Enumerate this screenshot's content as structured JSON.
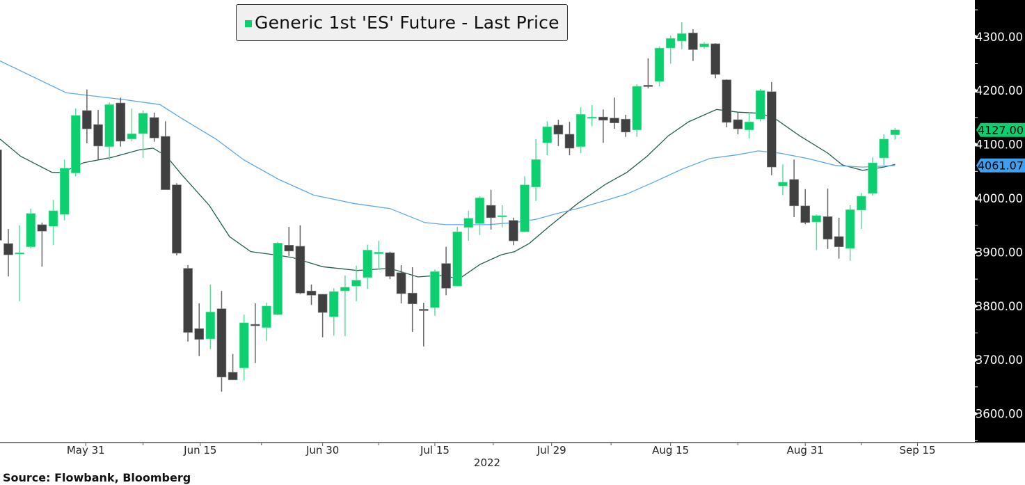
{
  "chart_data": {
    "type": "candlestick",
    "title": "",
    "legend": {
      "label": "Generic 1st 'ES' Future - Last Price",
      "placement": "top-center"
    },
    "source": "Source: Flowbank, Bloomberg",
    "ylim": [
      3550,
      4350
    ],
    "y_ticks": [
      3600,
      3700,
      3800,
      3900,
      4000,
      4100,
      4200,
      4300
    ],
    "y_tick_labels": [
      "3600.00",
      "3700.00",
      "3800.00",
      "3900.00",
      "4000.00",
      "4100.00",
      "4200.00",
      "4300.00"
    ],
    "x_tick_labels": [
      {
        "label": "May 31",
        "index": 7.9
      },
      {
        "label": "Jun 15",
        "index": 18.1
      },
      {
        "label": "Jun 30",
        "index": 29.0
      },
      {
        "label": "Jul 15",
        "index": 39.0
      },
      {
        "label": "Jul 29",
        "index": 49.4
      },
      {
        "label": "Aug 15",
        "index": 60.0
      },
      {
        "label": "Aug 31",
        "index": 72.0
      },
      {
        "label": "Sep 15",
        "index": 82.0
      }
    ],
    "x_year_label": "2022",
    "last_price_label": "4127.00",
    "ma_long_label": "4061.07",
    "colors": {
      "up": "#0ccf6f",
      "down": "#404040",
      "ma_short": "#1f5e50",
      "ma_long": "#5aa8e8",
      "axis_bg": "#000000",
      "badge_up": "#0ccf6f",
      "badge_ma": "#3fa0f0"
    },
    "candles_ohlc": [
      [
        4090,
        4100,
        3915,
        3922
      ],
      [
        3916,
        3943,
        3855,
        3895
      ],
      [
        3899,
        3950,
        3809,
        3899
      ],
      [
        3910,
        3981,
        3907,
        3972
      ],
      [
        3951,
        3955,
        3873,
        3939
      ],
      [
        3948,
        3997,
        3913,
        3977
      ],
      [
        3970,
        4072,
        3959,
        4056
      ],
      [
        4047,
        4167,
        4041,
        4154
      ],
      [
        4163,
        4202,
        4102,
        4129
      ],
      [
        4137,
        4164,
        4071,
        4097
      ],
      [
        4096,
        4178,
        4071,
        4174
      ],
      [
        4177,
        4187,
        4096,
        4106
      ],
      [
        4110,
        4167,
        4106,
        4120
      ],
      [
        4120,
        4163,
        4075,
        4158
      ],
      [
        4150,
        4159,
        4105,
        4112
      ],
      [
        4115,
        4143,
        4016,
        4016
      ],
      [
        4025,
        4028,
        3894,
        3898
      ],
      [
        3870,
        3876,
        3734,
        3751
      ],
      [
        3758,
        3805,
        3707,
        3738
      ],
      [
        3739,
        3840,
        3720,
        3789
      ],
      [
        3795,
        3828,
        3641,
        3668
      ],
      [
        3677,
        3711,
        3663,
        3663
      ],
      [
        3685,
        3784,
        3662,
        3769
      ],
      [
        3766,
        3805,
        3694,
        3764
      ],
      [
        3760,
        3806,
        3735,
        3800
      ],
      [
        3784,
        3919,
        3783,
        3917
      ],
      [
        3913,
        3947,
        3893,
        3902
      ],
      [
        3911,
        3950,
        3822,
        3824
      ],
      [
        3828,
        3840,
        3802,
        3820
      ],
      [
        3822,
        3822,
        3742,
        3788
      ],
      [
        3780,
        3833,
        3745,
        3827
      ],
      [
        3828,
        3857,
        3744,
        3835
      ],
      [
        3837,
        3875,
        3809,
        3848
      ],
      [
        3853,
        3914,
        3832,
        3904
      ],
      [
        3897,
        3921,
        3868,
        3900
      ],
      [
        3899,
        3901,
        3850,
        3855
      ],
      [
        3862,
        3876,
        3805,
        3823
      ],
      [
        3824,
        3872,
        3752,
        3804
      ],
      [
        3794,
        3806,
        3725,
        3793
      ],
      [
        3797,
        3868,
        3782,
        3864
      ],
      [
        3879,
        3910,
        3820,
        3833
      ],
      [
        3837,
        3947,
        3836,
        3938
      ],
      [
        3946,
        3977,
        3921,
        3963
      ],
      [
        3953,
        4004,
        3932,
        4001
      ],
      [
        3987,
        4016,
        3942,
        3964
      ],
      [
        3966,
        3987,
        3946,
        3968
      ],
      [
        3959,
        3964,
        3913,
        3921
      ],
      [
        3938,
        4041,
        3937,
        4025
      ],
      [
        4021,
        4110,
        3995,
        4072
      ],
      [
        4103,
        4143,
        4080,
        4133
      ],
      [
        4136,
        4146,
        4097,
        4119
      ],
      [
        4119,
        4142,
        4080,
        4093
      ],
      [
        4096,
        4169,
        4084,
        4156
      ],
      [
        4150,
        4173,
        4134,
        4151
      ],
      [
        4151,
        4165,
        4103,
        4145
      ],
      [
        4149,
        4187,
        4129,
        4140
      ],
      [
        4147,
        4155,
        4114,
        4123
      ],
      [
        4127,
        4212,
        4114,
        4208
      ],
      [
        4210,
        4260,
        4204,
        4209
      ],
      [
        4217,
        4282,
        4208,
        4279
      ],
      [
        4279,
        4302,
        4250,
        4297
      ],
      [
        4292,
        4327,
        4277,
        4306
      ],
      [
        4307,
        4314,
        4255,
        4276
      ],
      [
        4281,
        4290,
        4278,
        4287
      ],
      [
        4287,
        4288,
        4223,
        4230
      ],
      [
        4220,
        4221,
        4132,
        4141
      ],
      [
        4146,
        4160,
        4119,
        4129
      ],
      [
        4127,
        4159,
        4111,
        4142
      ],
      [
        4147,
        4203,
        4143,
        4200
      ],
      [
        4198,
        4216,
        4043,
        4058
      ],
      [
        4023,
        4063,
        4006,
        4030
      ],
      [
        4035,
        4072,
        3965,
        3986
      ],
      [
        3986,
        4017,
        3952,
        3955
      ],
      [
        3956,
        3970,
        3904,
        3968
      ],
      [
        3966,
        4018,
        3906,
        3924
      ],
      [
        3929,
        3964,
        3888,
        3910
      ],
      [
        3907,
        3987,
        3884,
        3979
      ],
      [
        3978,
        4010,
        3943,
        4004
      ],
      [
        4009,
        4076,
        4005,
        4066
      ],
      [
        4075,
        4119,
        4062,
        4110
      ],
      [
        4118,
        4130,
        4109,
        4127
      ]
    ],
    "series": [
      {
        "name": "MA short",
        "points": [
          [
            0.26,
            4110
          ],
          [
            2.1,
            4078
          ],
          [
            4.9,
            4048
          ],
          [
            5.8,
            4048
          ],
          [
            7.7,
            4066
          ],
          [
            10.2,
            4076
          ],
          [
            12.7,
            4090
          ],
          [
            13.9,
            4093
          ],
          [
            15.1,
            4078
          ],
          [
            16.4,
            4045
          ],
          [
            18.9,
            3987
          ],
          [
            20.7,
            3929
          ],
          [
            22.6,
            3901
          ],
          [
            25.1,
            3894
          ],
          [
            26.3,
            3890
          ],
          [
            29.0,
            3873
          ],
          [
            32.1,
            3866
          ],
          [
            35.0,
            3870
          ],
          [
            37.5,
            3854
          ],
          [
            39.3,
            3857
          ],
          [
            41.2,
            3851
          ],
          [
            43.0,
            3877
          ],
          [
            44.9,
            3895
          ],
          [
            46.1,
            3901
          ],
          [
            47.4,
            3916
          ],
          [
            49.2,
            3948
          ],
          [
            51.7,
            3990
          ],
          [
            54.2,
            4026
          ],
          [
            56.1,
            4048
          ],
          [
            57.9,
            4078
          ],
          [
            59.8,
            4116
          ],
          [
            61.6,
            4142
          ],
          [
            64.1,
            4165
          ],
          [
            66.0,
            4160
          ],
          [
            67.8,
            4158
          ],
          [
            69.1,
            4151
          ],
          [
            71.5,
            4116
          ],
          [
            74.0,
            4084
          ],
          [
            75.3,
            4062
          ],
          [
            77.1,
            4052
          ],
          [
            79.0,
            4058
          ],
          [
            80,
            4063
          ]
        ]
      },
      {
        "name": "MA long",
        "points": [
          [
            0.26,
            4255
          ],
          [
            6.15,
            4196
          ],
          [
            11.4,
            4183
          ],
          [
            14.5,
            4174
          ],
          [
            16.4,
            4149
          ],
          [
            19.5,
            4110
          ],
          [
            22.0,
            4071
          ],
          [
            25.1,
            4035
          ],
          [
            28.2,
            4006
          ],
          [
            31.9,
            3990
          ],
          [
            35.0,
            3981
          ],
          [
            38.1,
            3955
          ],
          [
            40.0,
            3951
          ],
          [
            43.7,
            3951
          ],
          [
            46.1,
            3955
          ],
          [
            48.0,
            3961
          ],
          [
            49.9,
            3972
          ],
          [
            51.7,
            3981
          ],
          [
            54.2,
            3996
          ],
          [
            56.1,
            4008
          ],
          [
            58.5,
            4030
          ],
          [
            61.0,
            4054
          ],
          [
            63.5,
            4074
          ],
          [
            66.0,
            4081
          ],
          [
            67.8,
            4088
          ],
          [
            69.7,
            4084
          ],
          [
            72.2,
            4074
          ],
          [
            74.7,
            4061
          ],
          [
            77.1,
            4058
          ],
          [
            80,
            4061
          ]
        ]
      }
    ]
  }
}
